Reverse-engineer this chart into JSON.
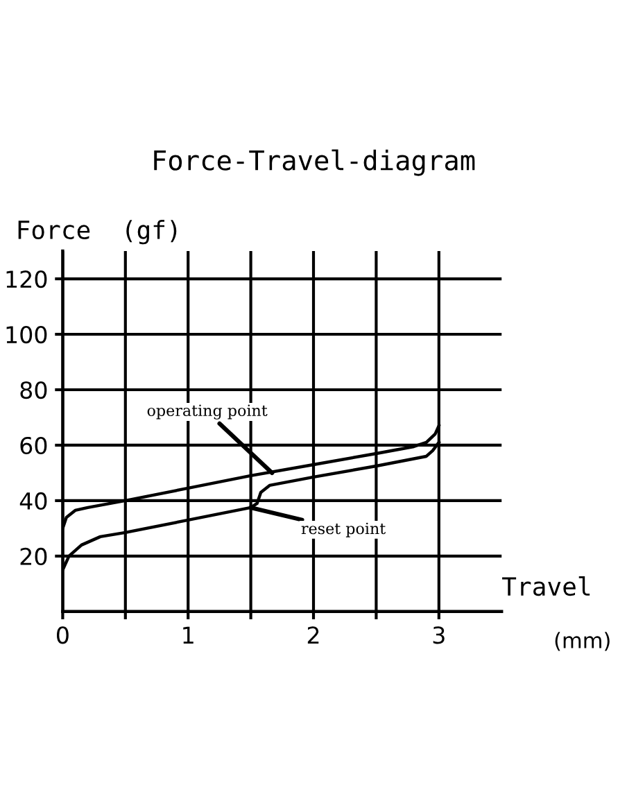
{
  "chart_data": {
    "type": "line",
    "title": "Force-Travel-diagram",
    "ylabel": "Force  (gf)",
    "xlabel": "Travel",
    "series": [
      {
        "color": "#000000",
        "x": [
          0,
          0.03,
          0.1,
          0.2,
          0.5,
          1,
          1.5,
          2,
          2.5,
          2.8,
          2.9,
          2.97,
          3
        ],
        "values": [
          30,
          34,
          36.5,
          37.5,
          40,
          44.5,
          49,
          53,
          57,
          59.5,
          61,
          64,
          67
        ]
      },
      {
        "color": "#000000",
        "x": [
          0,
          0.05,
          0.15,
          0.3,
          0.5,
          1,
          1.5,
          1.55,
          1.58,
          1.65,
          2,
          2.5,
          2.9,
          2.95,
          3
        ],
        "values": [
          15,
          20,
          24,
          27,
          28.5,
          33,
          37.5,
          39,
          43,
          45.5,
          48.5,
          52.5,
          56,
          58,
          61
        ]
      }
    ],
    "annotations": [
      {
        "text": "operating point",
        "x": 1.67,
        "y": 50
      },
      {
        "text": "reset point",
        "x": 1.5,
        "y": 37.5
      },
      "(mm)"
    ],
    "xlim": [
      0,
      3.5
    ],
    "xticks": [
      0,
      {
        "value": 0.5,
        "label": null
      },
      1,
      {
        "value": 1.5,
        "label": null
      },
      2,
      {
        "value": 2.5,
        "label": null
      },
      3
    ],
    "ylim": [
      0,
      130
    ],
    "yticks": [
      20,
      40,
      60,
      80,
      100,
      120
    ],
    "grid": true,
    "marker": "none",
    "line_style": "solid",
    "legend": false
  }
}
